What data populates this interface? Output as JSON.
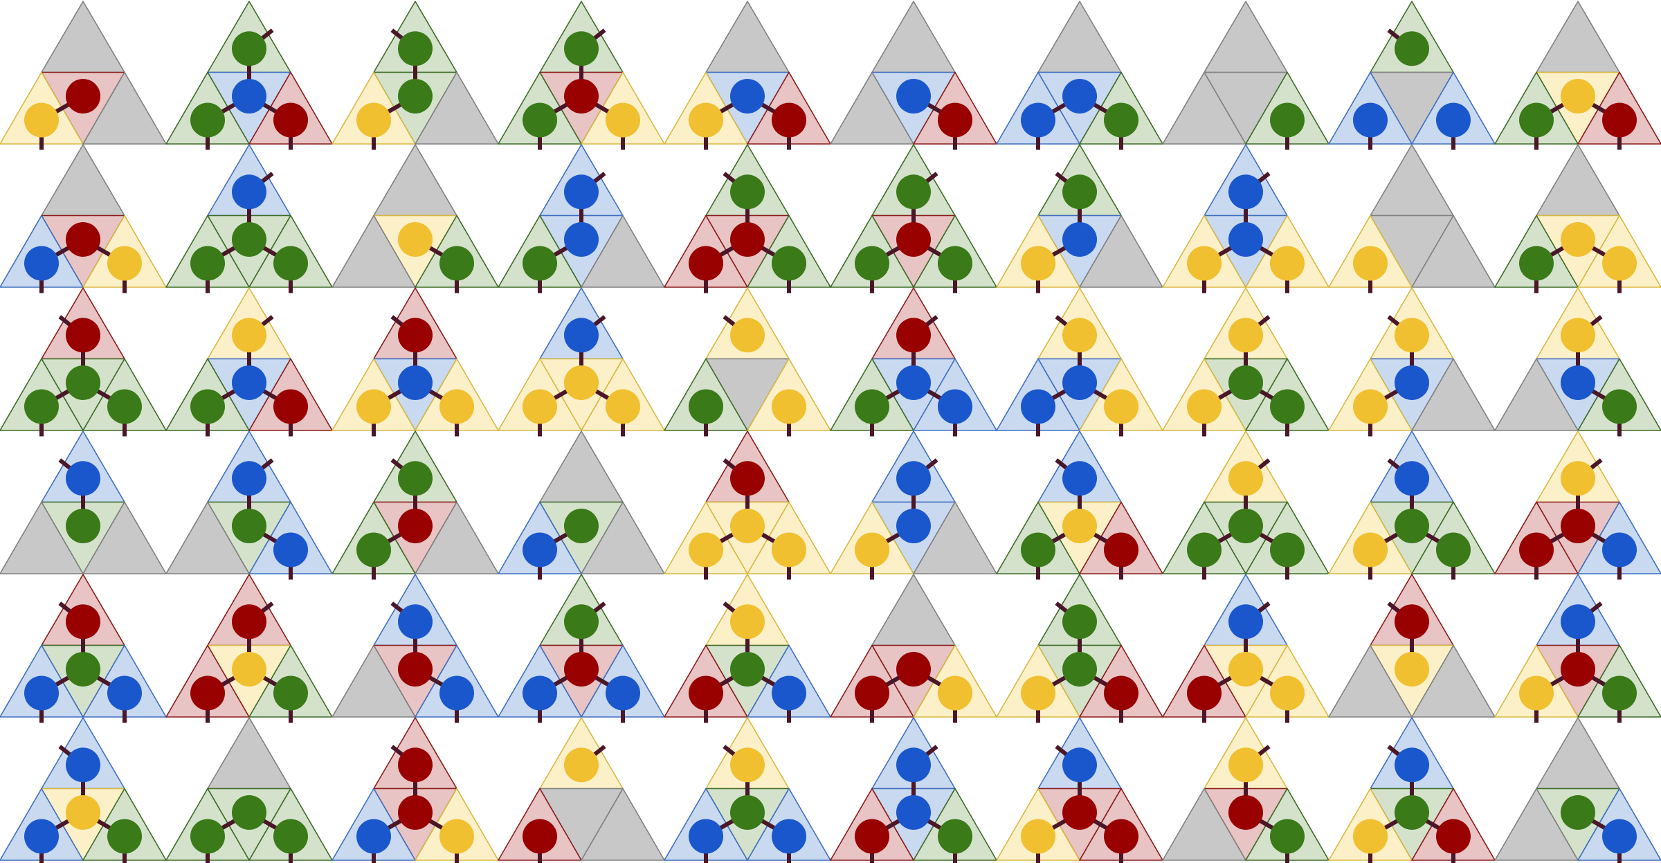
{
  "palette": {
    "red": {
      "fill": "#e8c4c4",
      "stroke": "#8b1a1a",
      "dot": "#990000"
    },
    "green": {
      "fill": "#d4e2cc",
      "stroke": "#3d6b26",
      "dot": "#3a7a18"
    },
    "blue": {
      "fill": "#c9d9f0",
      "stroke": "#3f6fc0",
      "dot": "#1a57cc"
    },
    "yellow": {
      "fill": "#fbf0c8",
      "stroke": "#d8b840",
      "dot": "#f0c030"
    },
    "gray": {
      "fill": "#c8c8c8",
      "stroke": "#808080",
      "dot": null
    },
    "stick": "#4a1628"
  },
  "tiles": [
    [
      [
        "gray",
        "red",
        "yellow",
        "gray"
      ],
      [
        "green",
        "blue",
        "green",
        "red"
      ],
      [
        "green",
        "green",
        "yellow",
        "gray"
      ],
      [
        "green",
        "red",
        "green",
        "yellow"
      ],
      [
        "gray",
        "blue",
        "yellow",
        "red"
      ],
      [
        "gray",
        "blue",
        "gray",
        "red"
      ],
      [
        "gray",
        "blue",
        "blue",
        "green"
      ],
      [
        "gray",
        "gray",
        "gray",
        "green"
      ],
      [
        "green",
        "gray",
        "blue",
        "blue"
      ],
      [
        "gray",
        "yellow",
        "green",
        "red"
      ]
    ],
    [
      [
        "gray",
        "red",
        "blue",
        "yellow"
      ],
      [
        "blue",
        "green",
        "green",
        "green"
      ],
      [
        "gray",
        "yellow",
        "gray",
        "green"
      ],
      [
        "blue",
        "blue",
        "green",
        "gray"
      ],
      [
        "green",
        "red",
        "red",
        "green"
      ],
      [
        "green",
        "red",
        "green",
        "green"
      ],
      [
        "green",
        "blue",
        "yellow",
        "gray"
      ],
      [
        "blue",
        "blue",
        "yellow",
        "yellow"
      ],
      [
        "gray",
        "gray",
        "yellow",
        "gray"
      ],
      [
        "gray",
        "yellow",
        "green",
        "yellow"
      ]
    ],
    [
      [
        "red",
        "green",
        "green",
        "green"
      ],
      [
        "yellow",
        "blue",
        "green",
        "red"
      ],
      [
        "red",
        "blue",
        "yellow",
        "yellow"
      ],
      [
        "blue",
        "yellow",
        "yellow",
        "yellow"
      ],
      [
        "yellow",
        "gray",
        "green",
        "yellow"
      ],
      [
        "red",
        "blue",
        "green",
        "blue"
      ],
      [
        "yellow",
        "blue",
        "blue",
        "yellow"
      ],
      [
        "yellow",
        "green",
        "yellow",
        "green"
      ],
      [
        "yellow",
        "blue",
        "yellow",
        "gray"
      ],
      [
        "yellow",
        "blue",
        "gray",
        "green"
      ]
    ],
    [
      [
        "blue",
        "green",
        "gray",
        "gray"
      ],
      [
        "blue",
        "green",
        "gray",
        "blue"
      ],
      [
        "green",
        "red",
        "green",
        "gray"
      ],
      [
        "gray",
        "green",
        "blue",
        "gray"
      ],
      [
        "red",
        "yellow",
        "yellow",
        "yellow"
      ],
      [
        "blue",
        "blue",
        "yellow",
        "gray"
      ],
      [
        "blue",
        "yellow",
        "green",
        "red"
      ],
      [
        "yellow",
        "green",
        "green",
        "green"
      ],
      [
        "blue",
        "green",
        "yellow",
        "green"
      ],
      [
        "yellow",
        "red",
        "red",
        "blue"
      ]
    ],
    [
      [
        "red",
        "green",
        "blue",
        "blue"
      ],
      [
        "red",
        "yellow",
        "red",
        "green"
      ],
      [
        "blue",
        "red",
        "gray",
        "blue"
      ],
      [
        "green",
        "red",
        "blue",
        "blue"
      ],
      [
        "yellow",
        "green",
        "red",
        "blue"
      ],
      [
        "gray",
        "red",
        "red",
        "yellow"
      ],
      [
        "green",
        "green",
        "yellow",
        "red"
      ],
      [
        "blue",
        "yellow",
        "red",
        "yellow"
      ],
      [
        "red",
        "yellow",
        "gray",
        "gray"
      ],
      [
        "blue",
        "red",
        "yellow",
        "green"
      ]
    ],
    [
      [
        "blue",
        "yellow",
        "blue",
        "green"
      ],
      [
        "gray",
        "green",
        "green",
        "green"
      ],
      [
        "red",
        "red",
        "blue",
        "yellow"
      ],
      [
        "yellow",
        "gray",
        "red",
        "gray"
      ],
      [
        "yellow",
        "green",
        "blue",
        "blue"
      ],
      [
        "blue",
        "blue",
        "red",
        "green"
      ],
      [
        "blue",
        "red",
        "yellow",
        "red"
      ],
      [
        "yellow",
        "red",
        "gray",
        "green"
      ],
      [
        "blue",
        "green",
        "yellow",
        "red"
      ],
      [
        "gray",
        "green",
        "gray",
        "blue"
      ]
    ]
  ]
}
